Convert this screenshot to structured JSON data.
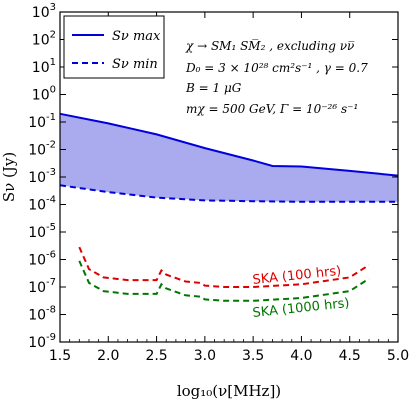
{
  "chart_data": {
    "type": "line",
    "xlabel": "log₁₀(ν[MHz])",
    "ylabel": "Sν (Jy)",
    "xlim": [
      1.5,
      5.0
    ],
    "ylim_log10": [
      -9,
      3
    ],
    "y_scale": "log",
    "x_ticks": [
      "1.5",
      "2.0",
      "2.5",
      "3.0",
      "3.5",
      "4.0",
      "4.5",
      "5.0"
    ],
    "y_tick_exponents": [
      "3",
      "2",
      "1",
      "0",
      "-1",
      "-2",
      "-3",
      "-4",
      "-5",
      "-6",
      "-7",
      "-8",
      "-9"
    ],
    "y_tick_base": "10",
    "grid": false,
    "legend_position": "top-left",
    "annotations": [
      "χ → SM₁ SM̅₂ , excluding νν̅",
      "D₀ = 3 × 10²⁸ cm²s⁻¹ , γ = 0.7",
      "B = 1 μG",
      "mχ = 500 GeV, Γ = 10⁻²⁶ s⁻¹"
    ],
    "fill_color": "#aaaaee",
    "series": [
      {
        "name": "Sν max",
        "color": "#0000dd",
        "style": "solid",
        "x": [
          1.5,
          2.0,
          2.5,
          3.0,
          3.5,
          3.7,
          4.0,
          4.5,
          5.0
        ],
        "log10_y": [
          -0.7,
          -1.05,
          -1.45,
          -1.95,
          -2.4,
          -2.6,
          -2.62,
          -2.78,
          -2.95
        ]
      },
      {
        "name": "Sν min",
        "color": "#0000dd",
        "style": "dashed",
        "x": [
          1.5,
          2.0,
          2.5,
          3.0,
          3.5,
          4.0,
          4.5,
          5.0
        ],
        "log10_y": [
          -3.3,
          -3.55,
          -3.75,
          -3.85,
          -3.88,
          -3.9,
          -3.9,
          -3.9
        ]
      },
      {
        "name": "SKA (100 hrs)",
        "color": "#dd0000",
        "style": "dashed",
        "x": [
          1.7,
          1.8,
          1.95,
          2.2,
          2.5,
          2.55,
          2.6,
          2.8,
          2.95,
          3.0,
          3.2,
          3.5,
          4.0,
          4.5,
          4.7
        ],
        "log10_y": [
          -5.55,
          -6.35,
          -6.65,
          -6.75,
          -6.75,
          -6.4,
          -6.55,
          -6.8,
          -6.85,
          -6.95,
          -7.0,
          -7.0,
          -6.9,
          -6.65,
          -6.2
        ]
      },
      {
        "name": "SKA (1000 hrs)",
        "color": "#007700",
        "style": "dashed",
        "x": [
          1.7,
          1.8,
          1.95,
          2.2,
          2.5,
          2.55,
          2.6,
          2.8,
          2.95,
          3.0,
          3.2,
          3.5,
          4.0,
          4.5,
          4.7
        ],
        "log10_y": [
          -6.05,
          -6.85,
          -7.15,
          -7.25,
          -7.25,
          -6.9,
          -7.05,
          -7.3,
          -7.35,
          -7.45,
          -7.5,
          -7.5,
          -7.4,
          -7.15,
          -6.7
        ]
      }
    ],
    "labels": {
      "ska100": "SKA (100 hrs)",
      "ska1000": "SKA (1000 hrs)"
    }
  }
}
